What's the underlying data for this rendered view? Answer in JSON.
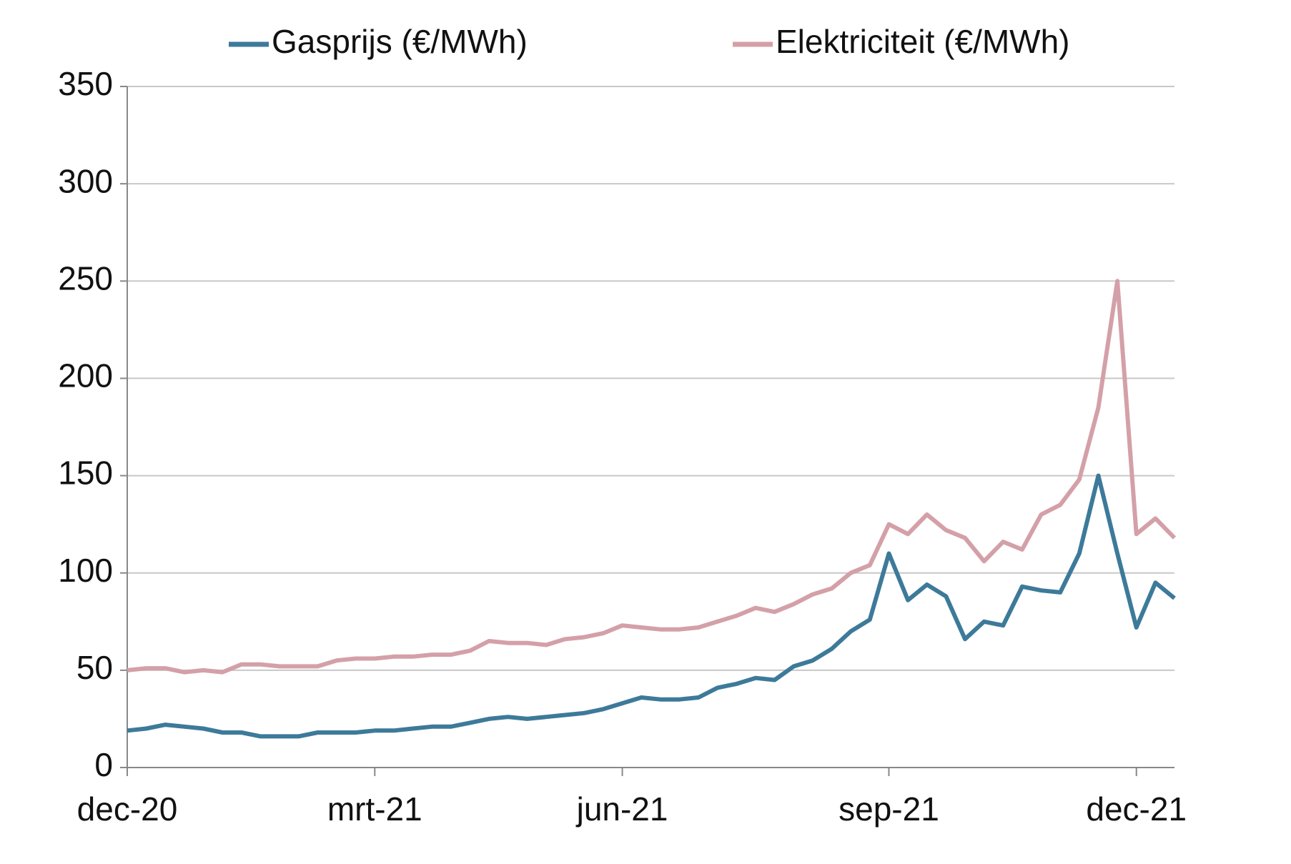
{
  "chart_data": {
    "type": "line",
    "categories": [
      "dec-20",
      null,
      null,
      null,
      null,
      null,
      null,
      null,
      null,
      null,
      null,
      null,
      null,
      "mrt-21",
      null,
      null,
      null,
      null,
      null,
      null,
      null,
      null,
      null,
      null,
      null,
      null,
      "jun-21",
      null,
      null,
      null,
      null,
      null,
      null,
      null,
      null,
      null,
      null,
      null,
      null,
      null,
      "sep-21",
      null,
      null,
      null,
      null,
      null,
      null,
      null,
      null,
      null,
      null,
      null,
      null,
      "dec-21",
      null,
      null
    ],
    "series": [
      {
        "name": "Gasprijs (€/MWh)",
        "color": "#3d7a9a",
        "values": [
          19,
          20,
          22,
          21,
          20,
          18,
          18,
          16,
          16,
          16,
          18,
          18,
          18,
          19,
          19,
          20,
          21,
          21,
          23,
          25,
          26,
          25,
          26,
          27,
          28,
          30,
          33,
          36,
          35,
          35,
          36,
          41,
          43,
          46,
          45,
          52,
          55,
          61,
          70,
          76,
          110,
          86,
          94,
          88,
          66,
          75,
          73,
          93,
          91,
          90,
          110,
          150,
          110,
          72,
          95,
          87
        ]
      },
      {
        "name": "Elektriciteit (€/MWh)",
        "color": "#d4a0a8",
        "values": [
          50,
          51,
          51,
          49,
          50,
          49,
          53,
          53,
          52,
          52,
          52,
          55,
          56,
          56,
          57,
          57,
          58,
          58,
          60,
          65,
          64,
          64,
          63,
          66,
          67,
          69,
          73,
          72,
          71,
          71,
          72,
          75,
          78,
          82,
          80,
          84,
          89,
          92,
          100,
          104,
          125,
          120,
          130,
          122,
          118,
          106,
          116,
          112,
          130,
          135,
          148,
          185,
          250,
          120,
          128,
          118
        ]
      }
    ],
    "ylim": [
      0,
      350
    ],
    "yticks": [
      0,
      50,
      100,
      150,
      200,
      250,
      300,
      350
    ],
    "grid": true,
    "legend": "top"
  }
}
